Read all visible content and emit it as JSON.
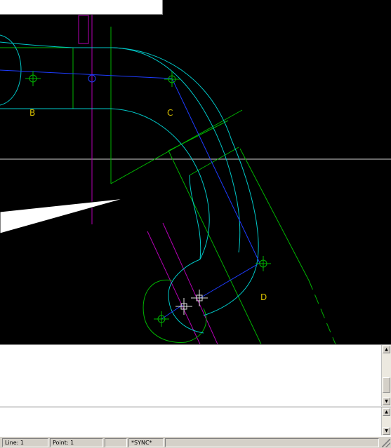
{
  "viewport": {
    "labels": {
      "b": "B",
      "c": "C",
      "d": "D"
    },
    "colors": {
      "background": "#000000",
      "cyan_curves": "#00c8c8",
      "green_lines": "#00b400",
      "blue_lines": "#1e3cff",
      "magenta_lines": "#b400b4",
      "label_text": "#d8c000",
      "crosshair": "#e0e0e0"
    }
  },
  "output_panel": {
    "text": ""
  },
  "command_panel": {
    "text": ""
  },
  "statusbar": {
    "line": "Line: 1",
    "point": "Point: 1",
    "empty": "",
    "sync": "*SYNC*"
  }
}
